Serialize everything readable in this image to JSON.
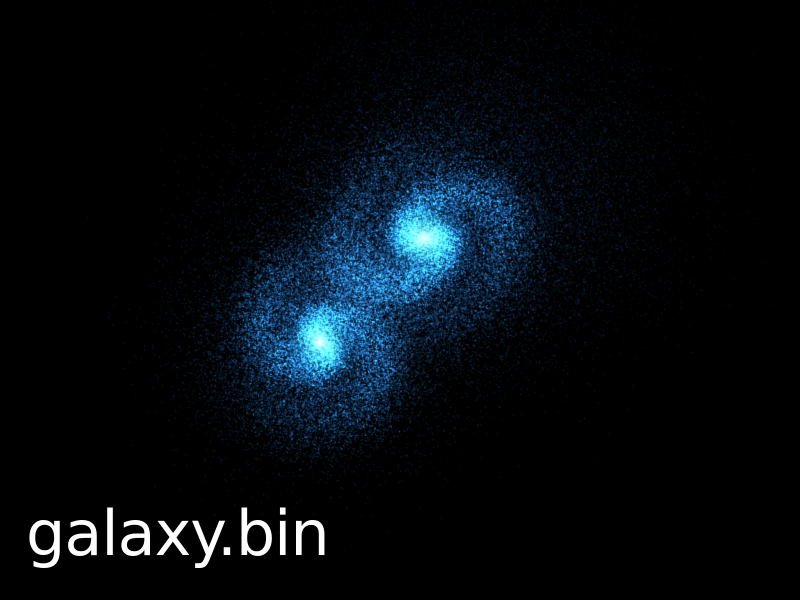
{
  "overlay": {
    "filename": "galaxy.bin"
  },
  "scene": {
    "background": "#000000",
    "particle_color": "#3fb0ff",
    "core_color": "#aef6ff",
    "galaxies": [
      {
        "name": "upper-galaxy"
      },
      {
        "name": "lower-galaxy"
      }
    ]
  }
}
